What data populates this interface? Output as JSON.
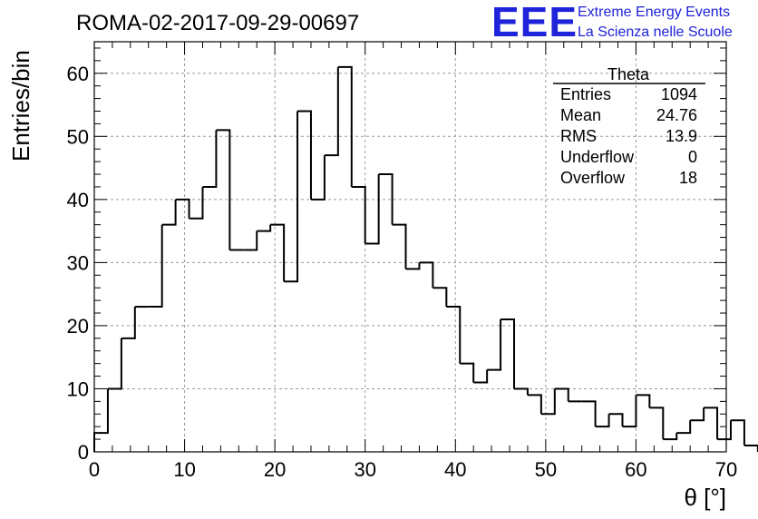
{
  "header": {
    "title": "ROMA-02-2017-09-29-00697",
    "logo": {
      "mark": "EEE",
      "line1": "Extreme Energy Events",
      "line2": "La Scienza nelle Scuole",
      "color": "#1f23d9"
    }
  },
  "stats": {
    "name": "Theta",
    "rows": [
      {
        "label": "Entries",
        "value": "1094"
      },
      {
        "label": "Mean",
        "value": "24.76"
      },
      {
        "label": "RMS",
        "value": "13.9"
      },
      {
        "label": "Underflow",
        "value": "0"
      },
      {
        "label": "Overflow",
        "value": "18"
      }
    ]
  },
  "chart_data": {
    "type": "histogram",
    "xlabel": "θ [°]",
    "ylabel": "Entries/bin",
    "xlim": [
      0,
      70
    ],
    "ylim": [
      0,
      65
    ],
    "xticks": [
      0,
      10,
      20,
      30,
      40,
      50,
      60,
      70
    ],
    "yticks": [
      0,
      10,
      20,
      30,
      40,
      50,
      60
    ],
    "bin_width": 1.5,
    "bin_edges_start": 0,
    "values": [
      3,
      10,
      18,
      23,
      23,
      36,
      40,
      37,
      42,
      51,
      32,
      32,
      35,
      36,
      27,
      54,
      40,
      47,
      61,
      42,
      33,
      44,
      36,
      29,
      30,
      26,
      23,
      14,
      11,
      13,
      21,
      10,
      9,
      6,
      10,
      8,
      8,
      4,
      6,
      4,
      9,
      7,
      2,
      3,
      5,
      7,
      2,
      5,
      1
    ],
    "grid": true,
    "line_color": "#000000"
  }
}
